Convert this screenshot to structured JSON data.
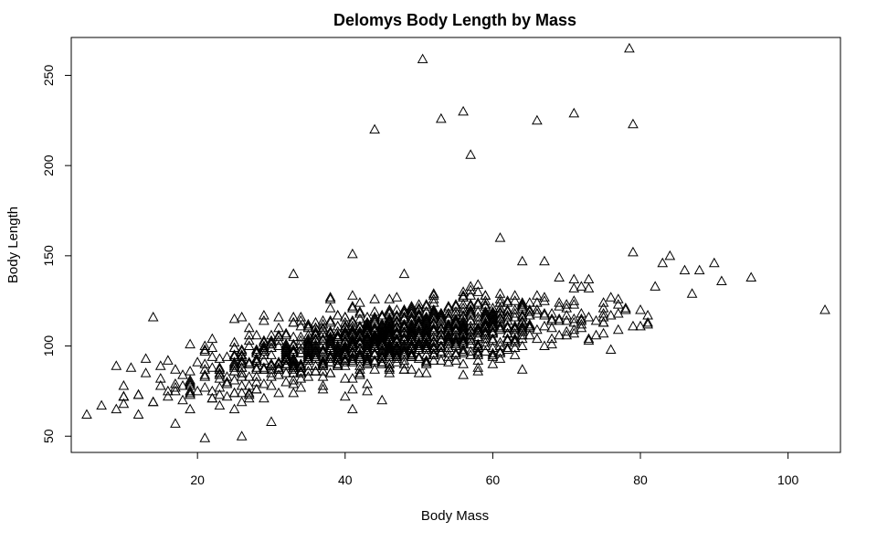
{
  "chart_data": {
    "type": "scatter",
    "title": "Delomys Body Length by Mass",
    "xlabel": "Body Mass",
    "ylabel": "Body Length",
    "xlim": [
      2.9,
      107.1
    ],
    "ylim": [
      41,
      271
    ],
    "xticks": [
      20,
      40,
      60,
      80,
      100
    ],
    "yticks": [
      50,
      100,
      150,
      200,
      250
    ],
    "marker": "open-triangle",
    "grid": false,
    "outliers": [
      {
        "x": 5,
        "y": 62
      },
      {
        "x": 7,
        "y": 67
      },
      {
        "x": 9,
        "y": 65
      },
      {
        "x": 10,
        "y": 72
      },
      {
        "x": 12,
        "y": 62
      },
      {
        "x": 14,
        "y": 116
      },
      {
        "x": 21,
        "y": 49
      },
      {
        "x": 26,
        "y": 50
      },
      {
        "x": 30,
        "y": 58
      },
      {
        "x": 33,
        "y": 140
      },
      {
        "x": 41,
        "y": 151
      },
      {
        "x": 45,
        "y": 70
      },
      {
        "x": 44,
        "y": 220
      },
      {
        "x": 50.5,
        "y": 259
      },
      {
        "x": 53,
        "y": 226
      },
      {
        "x": 56,
        "y": 230
      },
      {
        "x": 57,
        "y": 206
      },
      {
        "x": 61,
        "y": 160
      },
      {
        "x": 66,
        "y": 225
      },
      {
        "x": 71,
        "y": 229
      },
      {
        "x": 78.5,
        "y": 265
      },
      {
        "x": 79,
        "y": 223
      },
      {
        "x": 79,
        "y": 152
      },
      {
        "x": 84,
        "y": 150
      },
      {
        "x": 87,
        "y": 129
      },
      {
        "x": 90,
        "y": 146
      },
      {
        "x": 91,
        "y": 136
      },
      {
        "x": 95,
        "y": 138
      },
      {
        "x": 105,
        "y": 120
      },
      {
        "x": 48,
        "y": 140
      },
      {
        "x": 64,
        "y": 147
      },
      {
        "x": 78,
        "y": 121
      },
      {
        "x": 71,
        "y": 115
      },
      {
        "x": 83,
        "y": 146
      },
      {
        "x": 86,
        "y": 142
      },
      {
        "x": 88,
        "y": 142
      }
    ],
    "trend": {
      "intercept": 62,
      "slope": 1.2,
      "curvature": -0.006,
      "spread": 9
    },
    "bulk_point_count": 1350,
    "x_distribution": {
      "min": 8,
      "max": 82,
      "center": 46,
      "sd": 13
    }
  }
}
